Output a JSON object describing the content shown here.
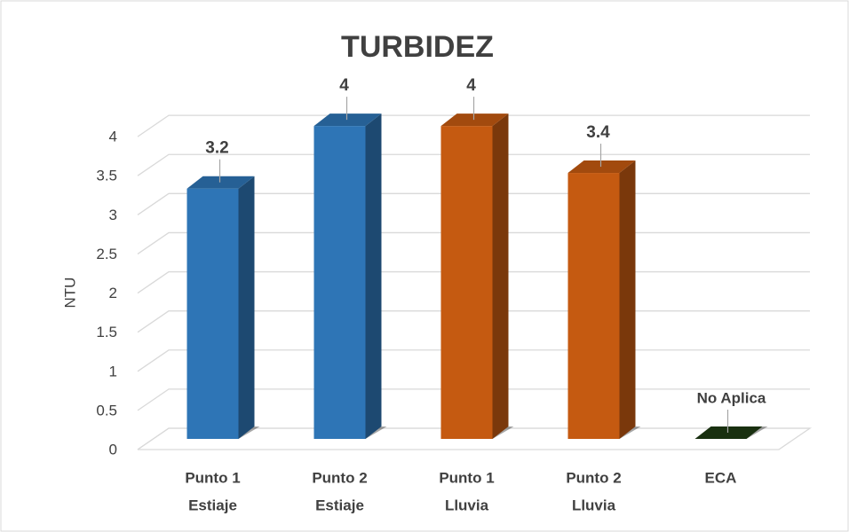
{
  "chart_data": {
    "type": "bar3d",
    "title": "TURBIDEZ",
    "y_label": "NTU",
    "categories": [
      [
        "Punto 1",
        "Estiaje"
      ],
      [
        "Punto 2",
        "Estiaje"
      ],
      [
        "Punto 1",
        "Lluvia"
      ],
      [
        "Punto 2",
        "Lluvia"
      ],
      [
        "ECA"
      ]
    ],
    "values": [
      3.2,
      4,
      4,
      3.4,
      0
    ],
    "colors": [
      "#2e75b6",
      "#2e75b6",
      "#c55a11",
      "#c55a11",
      "#1e3a14"
    ],
    "annotation": "No Aplica",
    "ylim": [
      0,
      4.5
    ],
    "yticks": [
      0,
      0.5,
      1,
      1.5,
      2,
      2.5,
      3,
      3.5,
      4
    ],
    "grid": true
  }
}
